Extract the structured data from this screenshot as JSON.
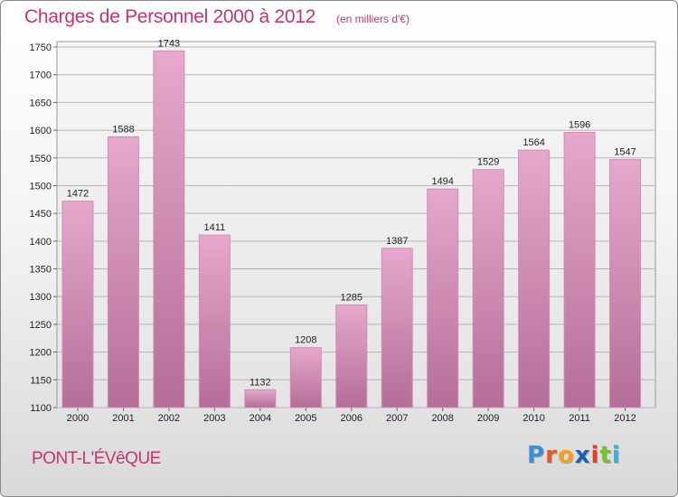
{
  "header": {
    "title": "Charges de Personnel 2000 à 2012",
    "subtitle": "(en milliers d'€)"
  },
  "footer": {
    "city": "PONT-L'ÉVêQUE",
    "logo_letters": [
      "P",
      "r",
      "o",
      "x",
      "i",
      "t",
      "i"
    ]
  },
  "colors": {
    "title": "#c8336e",
    "bar_top": "#e6a8cc",
    "bar_bottom": "#b46e98",
    "grid": "#b5b5b5",
    "plot_bg": "#e9e9e9"
  },
  "chart_data": {
    "type": "bar",
    "title": "Charges de Personnel 2000 à 2012",
    "subtitle": "(en milliers d'€)",
    "categories": [
      "2000",
      "2001",
      "2002",
      "2003",
      "2004",
      "2005",
      "2006",
      "2007",
      "2008",
      "2009",
      "2010",
      "2011",
      "2012"
    ],
    "values": [
      1472,
      1588,
      1743,
      1411,
      1132,
      1208,
      1285,
      1387,
      1494,
      1529,
      1564,
      1596,
      1547
    ],
    "ylim": [
      1100,
      1750
    ],
    "yticks": [
      1100,
      1150,
      1200,
      1250,
      1300,
      1350,
      1400,
      1450,
      1500,
      1550,
      1600,
      1650,
      1700,
      1750
    ],
    "grid": true,
    "legend": "none"
  }
}
